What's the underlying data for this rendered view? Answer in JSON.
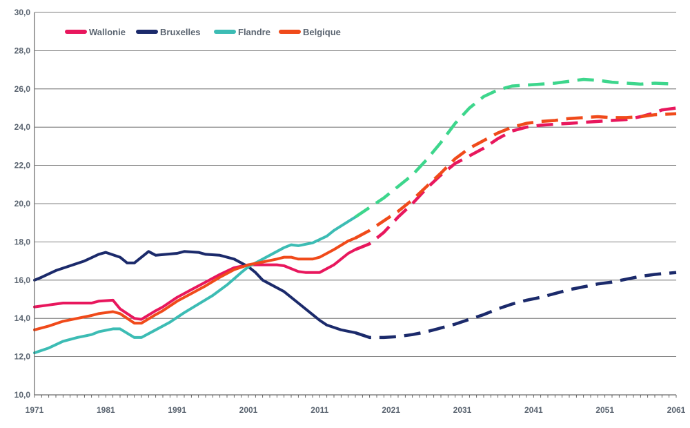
{
  "chart_data": {
    "type": "line",
    "title": "",
    "xlabel": "",
    "ylabel": "",
    "xlim": [
      1971,
      2061
    ],
    "ylim": [
      10,
      30
    ],
    "x_ticks": [
      1971,
      1981,
      1991,
      2001,
      2011,
      2021,
      2031,
      2041,
      2051,
      2061
    ],
    "x_tick_labels": [
      "1971",
      "1981",
      "1991",
      "2001",
      "2011",
      "2021",
      "2031",
      "2041",
      "2051",
      "2061"
    ],
    "y_ticks": [
      10,
      12,
      14,
      16,
      18,
      20,
      22,
      24,
      26,
      28,
      30
    ],
    "y_tick_labels": [
      "10,0",
      "12,0",
      "14,0",
      "16,0",
      "18,0",
      "20,0",
      "22,0",
      "24,0",
      "26,0",
      "28,0",
      "30,0"
    ],
    "grid": "horizontal",
    "legend_position": "top-left",
    "series": [
      {
        "name": "Wallonie",
        "color": "#e8175d",
        "observed": [
          [
            1971,
            14.6
          ],
          [
            1973,
            14.7
          ],
          [
            1975,
            14.8
          ],
          [
            1977,
            14.8
          ],
          [
            1979,
            14.8
          ],
          [
            1980,
            14.9
          ],
          [
            1982,
            14.95
          ],
          [
            1983,
            14.5
          ],
          [
            1985,
            14.0
          ],
          [
            1986,
            13.95
          ],
          [
            1988,
            14.4
          ],
          [
            1989,
            14.6
          ],
          [
            1991,
            15.1
          ],
          [
            1993,
            15.5
          ],
          [
            1995,
            15.9
          ],
          [
            1997,
            16.3
          ],
          [
            1999,
            16.65
          ],
          [
            2001,
            16.8
          ],
          [
            2003,
            16.8
          ],
          [
            2005,
            16.8
          ],
          [
            2006,
            16.75
          ],
          [
            2008,
            16.45
          ],
          [
            2009,
            16.4
          ],
          [
            2011,
            16.4
          ],
          [
            2013,
            16.8
          ],
          [
            2015,
            17.4
          ],
          [
            2016,
            17.6
          ]
        ],
        "projected": [
          [
            2016,
            17.6
          ],
          [
            2018,
            17.9
          ],
          [
            2020,
            18.5
          ],
          [
            2022,
            19.3
          ],
          [
            2024,
            20.0
          ],
          [
            2026,
            20.8
          ],
          [
            2028,
            21.5
          ],
          [
            2030,
            22.1
          ],
          [
            2032,
            22.5
          ],
          [
            2034,
            22.9
          ],
          [
            2036,
            23.4
          ],
          [
            2038,
            23.8
          ],
          [
            2040,
            24.0
          ],
          [
            2042,
            24.1
          ],
          [
            2044,
            24.15
          ],
          [
            2046,
            24.2
          ],
          [
            2048,
            24.25
          ],
          [
            2050,
            24.3
          ],
          [
            2052,
            24.35
          ],
          [
            2054,
            24.4
          ],
          [
            2056,
            24.55
          ],
          [
            2058,
            24.75
          ],
          [
            2059,
            24.9
          ],
          [
            2061,
            25.0
          ]
        ]
      },
      {
        "name": "Bruxelles",
        "color": "#1b2a6b",
        "observed": [
          [
            1971,
            16.0
          ],
          [
            1972,
            16.15
          ],
          [
            1974,
            16.5
          ],
          [
            1976,
            16.75
          ],
          [
            1978,
            17.0
          ],
          [
            1980,
            17.35
          ],
          [
            1981,
            17.45
          ],
          [
            1983,
            17.2
          ],
          [
            1984,
            16.9
          ],
          [
            1985,
            16.9
          ],
          [
            1987,
            17.5
          ],
          [
            1988,
            17.3
          ],
          [
            1991,
            17.4
          ],
          [
            1992,
            17.5
          ],
          [
            1994,
            17.45
          ],
          [
            1995,
            17.35
          ],
          [
            1997,
            17.3
          ],
          [
            1999,
            17.1
          ],
          [
            2001,
            16.7
          ],
          [
            2002,
            16.4
          ],
          [
            2003,
            16.0
          ],
          [
            2004,
            15.8
          ],
          [
            2006,
            15.4
          ],
          [
            2008,
            14.8
          ],
          [
            2010,
            14.2
          ],
          [
            2011,
            13.9
          ],
          [
            2012,
            13.65
          ],
          [
            2014,
            13.4
          ],
          [
            2016,
            13.25
          ]
        ],
        "projected": [
          [
            2016,
            13.25
          ],
          [
            2018,
            13.0
          ],
          [
            2020,
            13.0
          ],
          [
            2022,
            13.05
          ],
          [
            2024,
            13.15
          ],
          [
            2026,
            13.3
          ],
          [
            2028,
            13.5
          ],
          [
            2030,
            13.7
          ],
          [
            2032,
            13.95
          ],
          [
            2034,
            14.2
          ],
          [
            2036,
            14.5
          ],
          [
            2038,
            14.75
          ],
          [
            2040,
            14.95
          ],
          [
            2042,
            15.1
          ],
          [
            2044,
            15.3
          ],
          [
            2046,
            15.5
          ],
          [
            2048,
            15.65
          ],
          [
            2050,
            15.8
          ],
          [
            2052,
            15.9
          ],
          [
            2054,
            16.05
          ],
          [
            2056,
            16.2
          ],
          [
            2058,
            16.3
          ],
          [
            2061,
            16.4
          ]
        ]
      },
      {
        "name": "Flandre",
        "color": "#3cbcb4",
        "color_projected": "#3dd68c",
        "observed": [
          [
            1971,
            12.2
          ],
          [
            1973,
            12.45
          ],
          [
            1975,
            12.8
          ],
          [
            1977,
            13.0
          ],
          [
            1979,
            13.15
          ],
          [
            1980,
            13.3
          ],
          [
            1982,
            13.45
          ],
          [
            1983,
            13.45
          ],
          [
            1985,
            13.0
          ],
          [
            1986,
            13.0
          ],
          [
            1988,
            13.4
          ],
          [
            1990,
            13.8
          ],
          [
            1992,
            14.3
          ],
          [
            1994,
            14.75
          ],
          [
            1996,
            15.2
          ],
          [
            1998,
            15.75
          ],
          [
            2000,
            16.4
          ],
          [
            2001,
            16.7
          ],
          [
            2002,
            16.9
          ],
          [
            2004,
            17.3
          ],
          [
            2006,
            17.7
          ],
          [
            2007,
            17.85
          ],
          [
            2008,
            17.8
          ],
          [
            2010,
            17.95
          ],
          [
            2012,
            18.3
          ],
          [
            2013,
            18.6
          ],
          [
            2016,
            19.3
          ]
        ],
        "projected": [
          [
            2016,
            19.3
          ],
          [
            2018,
            19.8
          ],
          [
            2020,
            20.3
          ],
          [
            2022,
            20.9
          ],
          [
            2024,
            21.5
          ],
          [
            2026,
            22.3
          ],
          [
            2028,
            23.2
          ],
          [
            2030,
            24.2
          ],
          [
            2032,
            25.0
          ],
          [
            2034,
            25.6
          ],
          [
            2036,
            25.95
          ],
          [
            2038,
            26.15
          ],
          [
            2040,
            26.2
          ],
          [
            2042,
            26.25
          ],
          [
            2044,
            26.3
          ],
          [
            2046,
            26.4
          ],
          [
            2048,
            26.5
          ],
          [
            2050,
            26.45
          ],
          [
            2052,
            26.35
          ],
          [
            2054,
            26.3
          ],
          [
            2056,
            26.25
          ],
          [
            2058,
            26.3
          ],
          [
            2061,
            26.25
          ]
        ]
      },
      {
        "name": "Belgique",
        "color": "#f04a1a",
        "observed": [
          [
            1971,
            13.4
          ],
          [
            1973,
            13.6
          ],
          [
            1975,
            13.85
          ],
          [
            1977,
            14.0
          ],
          [
            1979,
            14.15
          ],
          [
            1980,
            14.25
          ],
          [
            1982,
            14.35
          ],
          [
            1983,
            14.25
          ],
          [
            1985,
            13.75
          ],
          [
            1986,
            13.75
          ],
          [
            1988,
            14.2
          ],
          [
            1989,
            14.4
          ],
          [
            1991,
            14.9
          ],
          [
            1993,
            15.3
          ],
          [
            1995,
            15.7
          ],
          [
            1997,
            16.15
          ],
          [
            1999,
            16.55
          ],
          [
            2001,
            16.8
          ],
          [
            2003,
            16.95
          ],
          [
            2005,
            17.1
          ],
          [
            2006,
            17.2
          ],
          [
            2007,
            17.2
          ],
          [
            2008,
            17.1
          ],
          [
            2010,
            17.1
          ],
          [
            2011,
            17.2
          ],
          [
            2013,
            17.6
          ],
          [
            2015,
            18.05
          ],
          [
            2016,
            18.2
          ]
        ],
        "projected": [
          [
            2016,
            18.2
          ],
          [
            2018,
            18.6
          ],
          [
            2020,
            19.1
          ],
          [
            2022,
            19.6
          ],
          [
            2024,
            20.2
          ],
          [
            2026,
            20.9
          ],
          [
            2028,
            21.6
          ],
          [
            2030,
            22.35
          ],
          [
            2032,
            22.9
          ],
          [
            2034,
            23.3
          ],
          [
            2036,
            23.7
          ],
          [
            2038,
            24.0
          ],
          [
            2040,
            24.2
          ],
          [
            2042,
            24.3
          ],
          [
            2044,
            24.35
          ],
          [
            2046,
            24.45
          ],
          [
            2048,
            24.5
          ],
          [
            2050,
            24.55
          ],
          [
            2052,
            24.5
          ],
          [
            2054,
            24.5
          ],
          [
            2056,
            24.55
          ],
          [
            2058,
            24.65
          ],
          [
            2061,
            24.7
          ]
        ]
      }
    ]
  }
}
